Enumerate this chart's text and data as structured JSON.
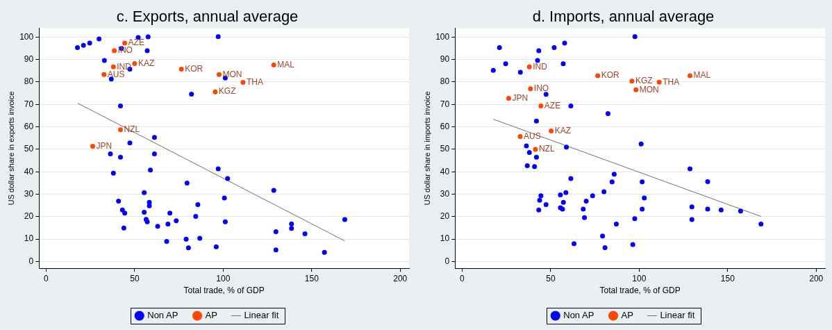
{
  "chart_data": [
    {
      "type": "scatter",
      "title": "c. Exports, annual average",
      "xlabel": "Total trade, % of GDP",
      "ylabel": "US dollar share in exports invoice",
      "xlim": [
        -4,
        205
      ],
      "ylim": [
        -3,
        104
      ],
      "xticks": [
        0,
        50,
        100,
        150,
        200
      ],
      "yticks": [
        0,
        10,
        20,
        30,
        40,
        50,
        60,
        70,
        80,
        90,
        100
      ],
      "grid": "y",
      "legend": "bottom",
      "series": [
        {
          "name": "Non AP",
          "color": "#0000ff",
          "x": [
            17.7,
            21.1,
            24.6,
            29.9,
            52.0,
            57.6,
            42.6,
            57.1,
            32.9,
            47.3,
            36.8,
            97.2,
            101.2,
            82.1,
            42.0,
            61.2,
            47.3,
            36.3,
            42.0,
            61.2,
            38.0,
            58.9,
            97.2,
            102.5,
            79.6,
            55.4,
            40.9,
            58.3,
            58.3,
            85.7,
            43.1,
            44.4,
            55.4,
            69.9,
            100.7,
            56.5,
            57.1,
            73.5,
            84.5,
            101.2,
            63.0,
            68.8,
            43.9,
            68.1,
            79.1,
            86.8,
            80.4,
            96.1,
            128.6,
            129.8,
            129.8,
            138.6,
            138.6,
            146.2,
            157.2,
            168.7
          ],
          "values": [
            95.3,
            96.3,
            97.3,
            99.2,
            99.8,
            100.1,
            94.9,
            93.9,
            89.6,
            85.7,
            81.3,
            100.2,
            81.8,
            74.6,
            69.3,
            55.3,
            52.8,
            48.0,
            46.5,
            48.0,
            39.4,
            40.8,
            41.3,
            37.0,
            35.0,
            30.7,
            26.9,
            26.4,
            24.8,
            25.4,
            23.0,
            21.6,
            22.0,
            21.6,
            28.3,
            18.8,
            17.7,
            18.2,
            20.1,
            17.7,
            15.7,
            16.7,
            14.9,
            9.0,
            10.0,
            10.4,
            6.1,
            6.6,
            31.7,
            13.3,
            5.2,
            16.8,
            14.8,
            12.4,
            4.1,
            18.7
          ]
        },
        {
          "name": "AP",
          "color": "#ff4500",
          "x": [
            44.4,
            38.5,
            38.0,
            50.0,
            32.7,
            76.4,
            97.7,
            95.5,
            42.0,
            26.3,
            128.6,
            111.2
          ],
          "values": [
            97.3,
            93.9,
            86.7,
            88.2,
            83.3,
            85.7,
            83.3,
            75.6,
            58.7,
            51.4,
            87.6,
            79.8
          ]
        },
        {
          "name": "Linear fit",
          "type": "line",
          "color": "#707070",
          "x": [
            17.9,
            168.7
          ],
          "values": [
            70.5,
            9.2
          ]
        }
      ],
      "annotations": [
        {
          "text": "AZE",
          "x": 44.4,
          "y": 97.3
        },
        {
          "text": "INO",
          "x": 38.5,
          "y": 93.9
        },
        {
          "text": "IND",
          "x": 38.0,
          "y": 86.7
        },
        {
          "text": "KAZ",
          "x": 50.0,
          "y": 88.2
        },
        {
          "text": "AUS",
          "x": 32.7,
          "y": 83.3
        },
        {
          "text": "KOR",
          "x": 76.4,
          "y": 85.7
        },
        {
          "text": "MON",
          "x": 97.7,
          "y": 83.3
        },
        {
          "text": "KGZ",
          "x": 95.5,
          "y": 75.6
        },
        {
          "text": "NZL",
          "x": 42.0,
          "y": 58.7
        },
        {
          "text": "JPN",
          "x": 26.3,
          "y": 51.4
        },
        {
          "text": "MAL",
          "x": 128.6,
          "y": 87.6
        },
        {
          "text": "THA",
          "x": 111.2,
          "y": 79.8
        }
      ]
    },
    {
      "type": "scatter",
      "title": "d. Imports, annual average",
      "xlabel": "Total trade, % of GDP",
      "ylabel": "US dollar share in imports invoice",
      "xlim": [
        -4,
        205
      ],
      "ylim": [
        -3,
        104
      ],
      "xticks": [
        0,
        50,
        100,
        150,
        200
      ],
      "yticks": [
        0,
        10,
        20,
        30,
        40,
        50,
        60,
        70,
        80,
        90,
        100
      ],
      "grid": "y",
      "legend": "bottom",
      "series": [
        {
          "name": "Non AP",
          "color": "#0000ff",
          "x": [
            21.1,
            43.3,
            52.0,
            57.9,
            97.6,
            24.6,
            42.6,
            57.1,
            17.6,
            32.9,
            47.4,
            61.4,
            82.4,
            42.0,
            58.9,
            101.1,
            36.3,
            38.0,
            42.0,
            36.8,
            40.9,
            61.4,
            85.9,
            84.7,
            101.7,
            80.1,
            102.9,
            44.5,
            43.8,
            47.4,
            43.3,
            55.5,
            58.6,
            57.2,
            55.5,
            56.7,
            73.7,
            70.1,
            68.4,
            69.1,
            101.7,
            97.5,
            87.1,
            79.3,
            63.2,
            80.7,
            96.4,
            128.7,
            138.7,
            129.8,
            138.7,
            146.3,
            157.3,
            129.8,
            168.8
          ],
          "values": [
            95.3,
            93.9,
            95.3,
            97.3,
            100.2,
            88.1,
            89.6,
            88.1,
            85.2,
            84.3,
            74.5,
            69.3,
            65.9,
            62.6,
            51.0,
            52.4,
            51.5,
            48.6,
            46.5,
            42.7,
            42.3,
            37.0,
            38.9,
            35.5,
            35.5,
            31.1,
            28.3,
            29.3,
            27.3,
            25.4,
            23.0,
            29.7,
            30.7,
            26.4,
            24.0,
            23.4,
            29.3,
            26.9,
            23.4,
            19.6,
            23.4,
            19.1,
            16.7,
            11.4,
            8.0,
            6.2,
            7.6,
            41.3,
            35.6,
            24.4,
            23.4,
            23.0,
            22.5,
            18.7,
            16.7
          ]
        },
        {
          "name": "AP",
          "color": "#ff4500",
          "x": [
            38.0,
            76.6,
            95.9,
            98.2,
            38.6,
            26.3,
            44.5,
            50.3,
            32.8,
            41.4,
            111.3,
            128.7
          ],
          "values": [
            86.7,
            82.8,
            80.4,
            76.5,
            77.0,
            72.7,
            69.3,
            58.2,
            55.7,
            50.0,
            79.9,
            82.8
          ]
        },
        {
          "name": "Linear fit",
          "type": "line",
          "color": "#707070",
          "x": [
            17.6,
            168.8
          ],
          "values": [
            63.4,
            20.1
          ]
        }
      ],
      "annotations": [
        {
          "text": "IND",
          "x": 38.0,
          "y": 86.7
        },
        {
          "text": "KOR",
          "x": 76.6,
          "y": 82.8
        },
        {
          "text": "KGZ",
          "x": 95.9,
          "y": 80.4
        },
        {
          "text": "MON",
          "x": 98.2,
          "y": 76.5
        },
        {
          "text": "INO",
          "x": 38.6,
          "y": 77.0
        },
        {
          "text": "JPN",
          "x": 26.3,
          "y": 72.7
        },
        {
          "text": "AZE",
          "x": 44.5,
          "y": 69.3
        },
        {
          "text": "KAZ",
          "x": 50.3,
          "y": 58.2
        },
        {
          "text": "AUS",
          "x": 32.8,
          "y": 55.7
        },
        {
          "text": "NZL",
          "x": 41.4,
          "y": 50.0
        },
        {
          "text": "THA",
          "x": 111.3,
          "y": 79.9
        },
        {
          "text": "MAL",
          "x": 128.7,
          "y": 82.8
        }
      ]
    }
  ]
}
